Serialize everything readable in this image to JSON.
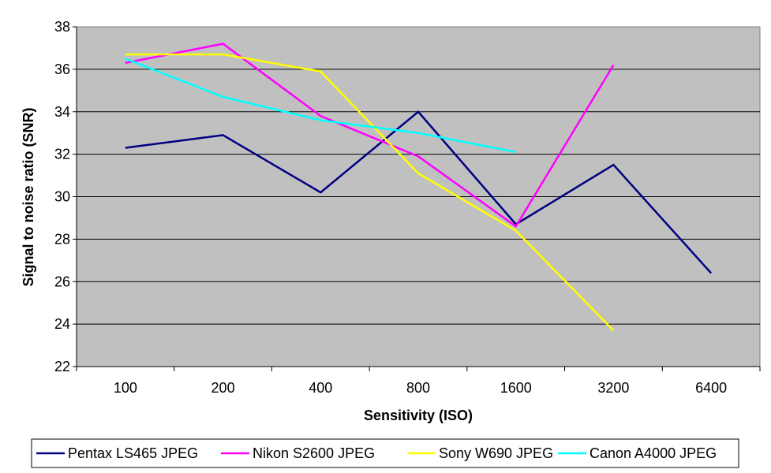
{
  "chart_data": {
    "type": "line",
    "title": "",
    "xlabel": "Sensitivity (ISO)",
    "ylabel": "Signal to noise ratio (SNR)",
    "categories": [
      "100",
      "200",
      "400",
      "800",
      "1600",
      "3200",
      "6400"
    ],
    "ylim": [
      22,
      38
    ],
    "yticks": [
      "22",
      "24",
      "26",
      "28",
      "30",
      "32",
      "34",
      "36",
      "38"
    ],
    "grid": true,
    "legend_position": "bottom",
    "plot_background": "#C0C0C0",
    "series": [
      {
        "name": "Pentax LS465 JPEG",
        "color": "#000080",
        "values": [
          32.3,
          32.9,
          30.2,
          34.0,
          28.7,
          31.5,
          26.4
        ]
      },
      {
        "name": "Nikon S2600 JPEG",
        "color": "#FF00FF",
        "values": [
          36.3,
          37.2,
          33.8,
          31.9,
          28.6,
          36.2,
          null
        ]
      },
      {
        "name": "Sony W690 JPEG",
        "color": "#FFFF00",
        "values": [
          36.7,
          36.7,
          35.9,
          31.1,
          28.4,
          23.7,
          null
        ]
      },
      {
        "name": "Canon A4000 JPEG",
        "color": "#00FFFF",
        "values": [
          36.5,
          34.7,
          33.6,
          33.0,
          32.1,
          null,
          null
        ]
      }
    ]
  }
}
